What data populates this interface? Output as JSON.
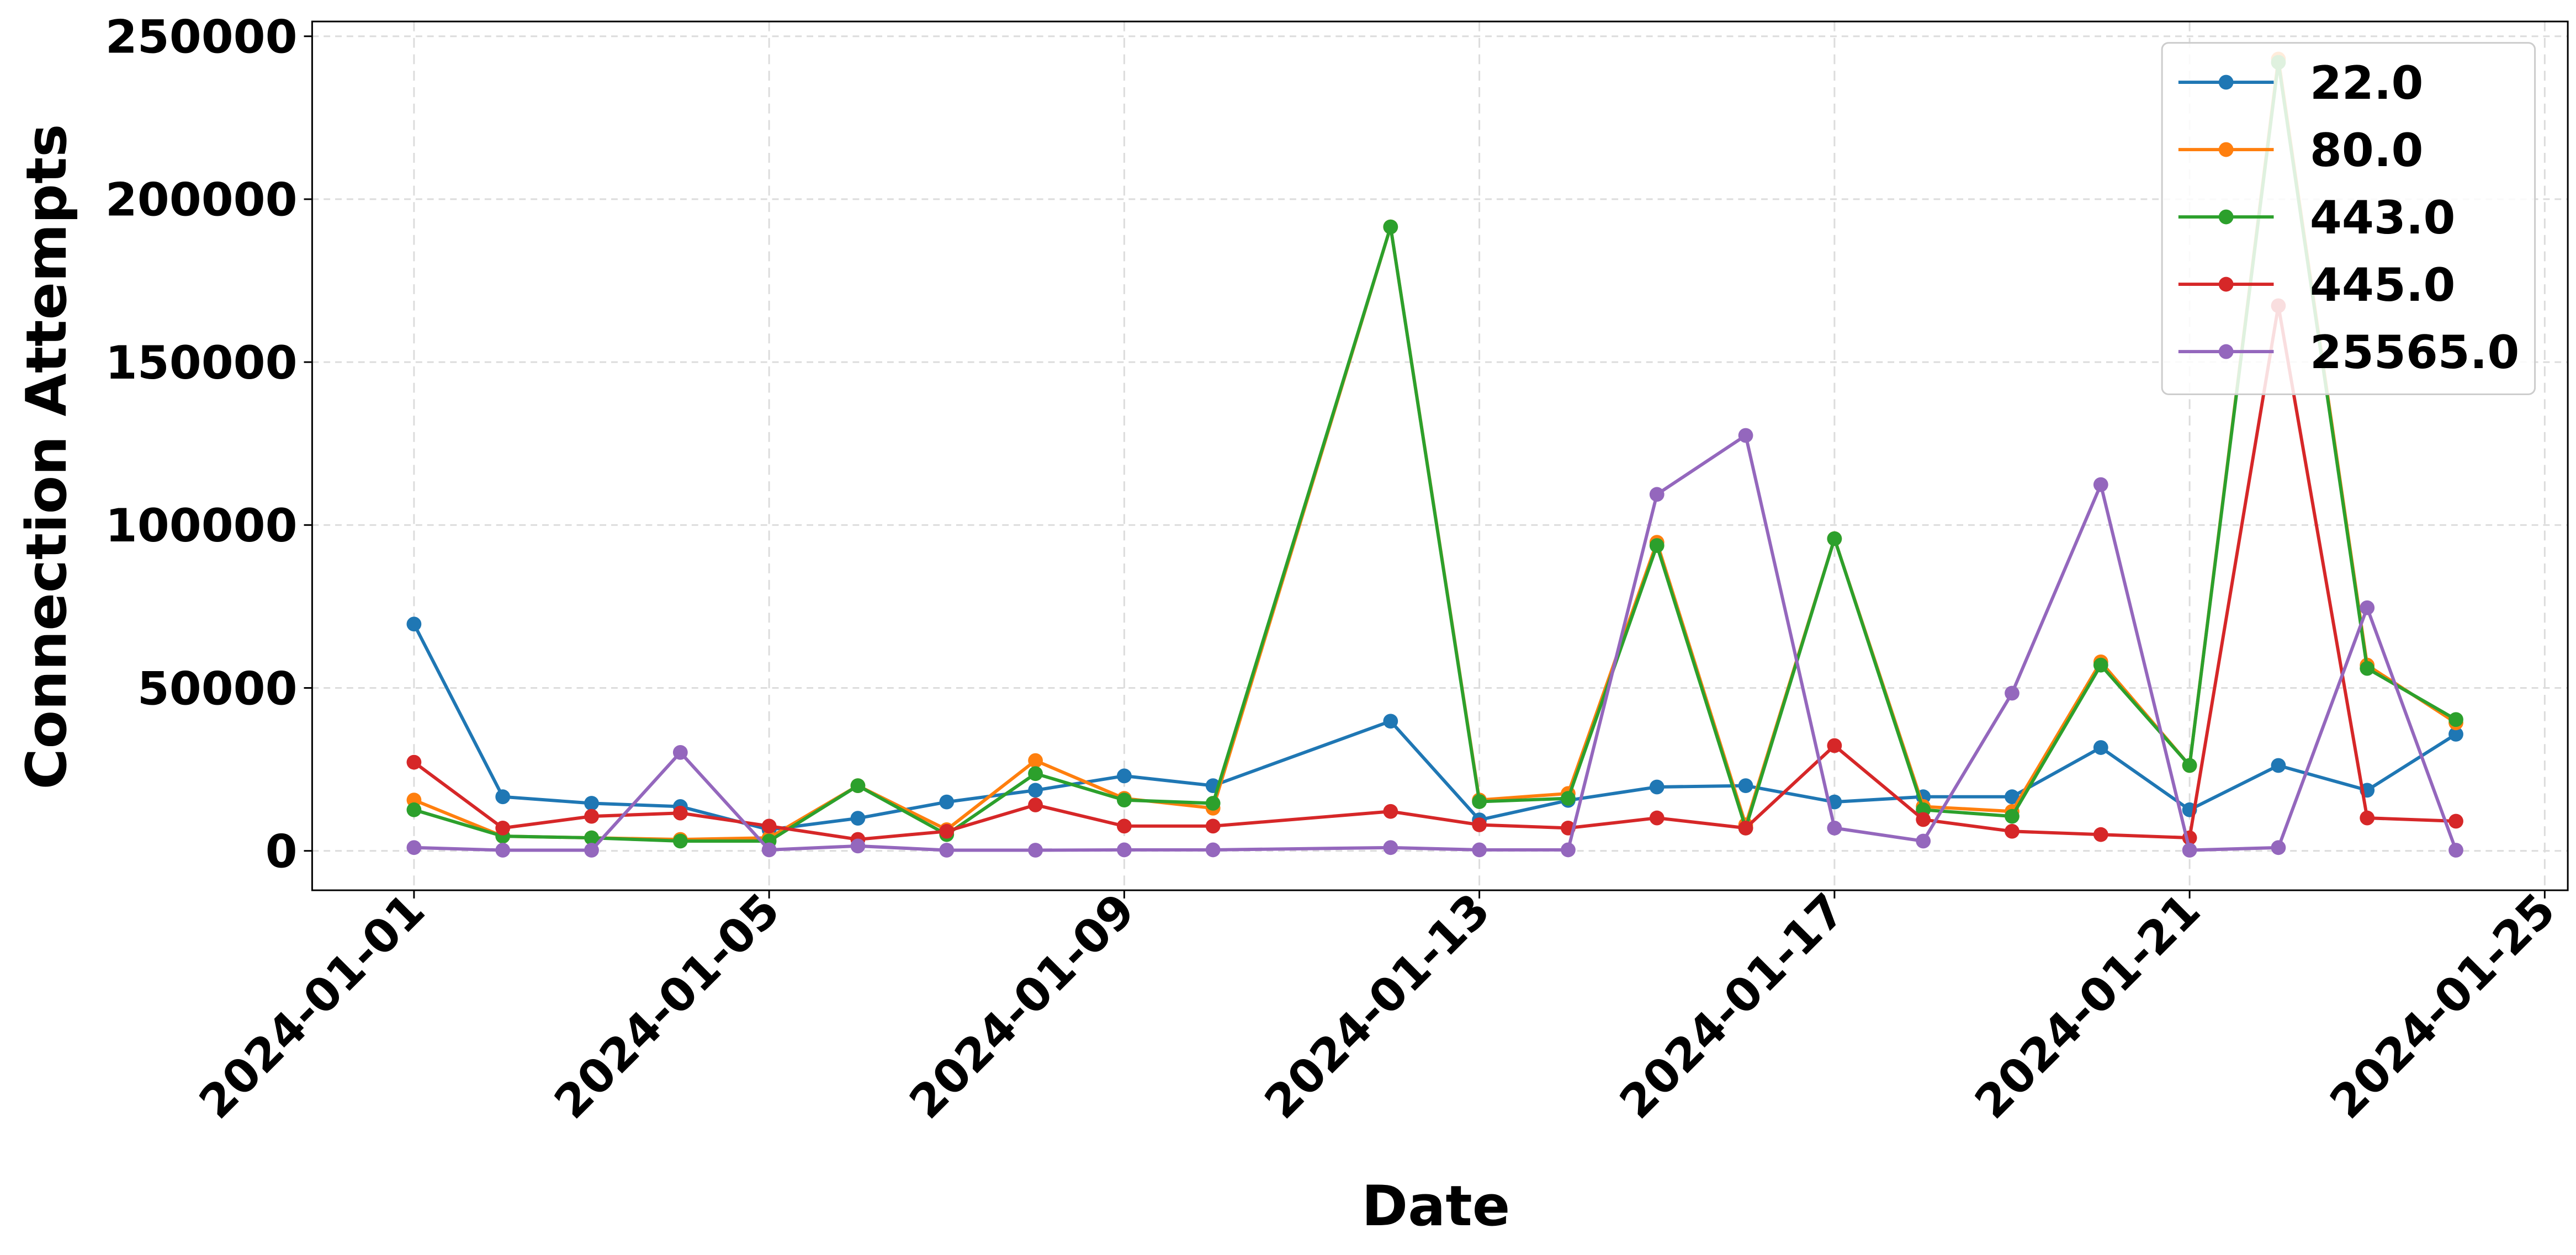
{
  "chart_data": {
    "type": "line",
    "title": "",
    "xlabel": "Date",
    "ylabel": "Connection Attempts",
    "ylim": [
      -12000,
      255000
    ],
    "xlim": [
      "2023-12-29",
      "2024-01-25"
    ],
    "grid": true,
    "legend_placement": "top-right",
    "yticks": [
      0,
      50000,
      100000,
      150000,
      200000,
      250000
    ],
    "xticks": [
      "2024-01-01",
      "2024-01-05",
      "2024-01-09",
      "2024-01-13",
      "2024-01-17",
      "2024-01-21",
      "2024-01-25"
    ],
    "x": [
      "2024-01-01",
      "2024-01-02",
      "2024-01-03",
      "2024-01-04",
      "2024-01-05",
      "2024-01-06",
      "2024-01-07",
      "2024-01-08",
      "2024-01-09",
      "2024-01-10",
      "2024-01-12",
      "2024-01-13",
      "2024-01-14",
      "2024-01-15",
      "2024-01-16",
      "2024-01-17",
      "2024-01-18",
      "2024-01-19",
      "2024-01-20",
      "2024-01-21",
      "2024-01-22",
      "2024-01-23",
      "2024-01-24"
    ],
    "series": [
      {
        "name": "22.0",
        "color": "#1f77b4",
        "values": [
          69600,
          16600,
          14600,
          13600,
          6500,
          10000,
          15000,
          18600,
          23000,
          20000,
          39800,
          9500,
          15500,
          19600,
          20000,
          15000,
          16600,
          16600,
          31700,
          12600,
          26200,
          18600,
          35800
        ]
      },
      {
        "name": "80.0",
        "color": "#ff7f0e",
        "values": [
          15600,
          4500,
          4000,
          3500,
          4000,
          20000,
          6500,
          27700,
          16100,
          13100,
          191500,
          15600,
          17600,
          94700,
          8000,
          95800,
          13600,
          12100,
          58000,
          26200,
          243000,
          57000,
          39300
        ]
      },
      {
        "name": "443.0",
        "color": "#2ca02c",
        "values": [
          12600,
          4500,
          4000,
          3000,
          3000,
          20000,
          5000,
          23700,
          15600,
          14600,
          191500,
          15100,
          16100,
          93700,
          7000,
          95800,
          12600,
          10600,
          57000,
          26200,
          242000,
          56000,
          40300
        ]
      },
      {
        "name": "445.0",
        "color": "#d62728",
        "values": [
          27200,
          7000,
          10600,
          11600,
          7600,
          3500,
          6000,
          14100,
          7600,
          7600,
          12100,
          8000,
          7000,
          10100,
          7000,
          32300,
          9600,
          6000,
          5000,
          4000,
          167300,
          10100,
          9100
        ]
      },
      {
        "name": "25565.0",
        "color": "#9467bd",
        "values": [
          1000,
          200,
          200,
          30200,
          300,
          1500,
          200,
          200,
          300,
          300,
          1000,
          300,
          300,
          109400,
          127500,
          7000,
          3000,
          48400,
          112400,
          200,
          1000,
          74600,
          200
        ]
      }
    ]
  }
}
